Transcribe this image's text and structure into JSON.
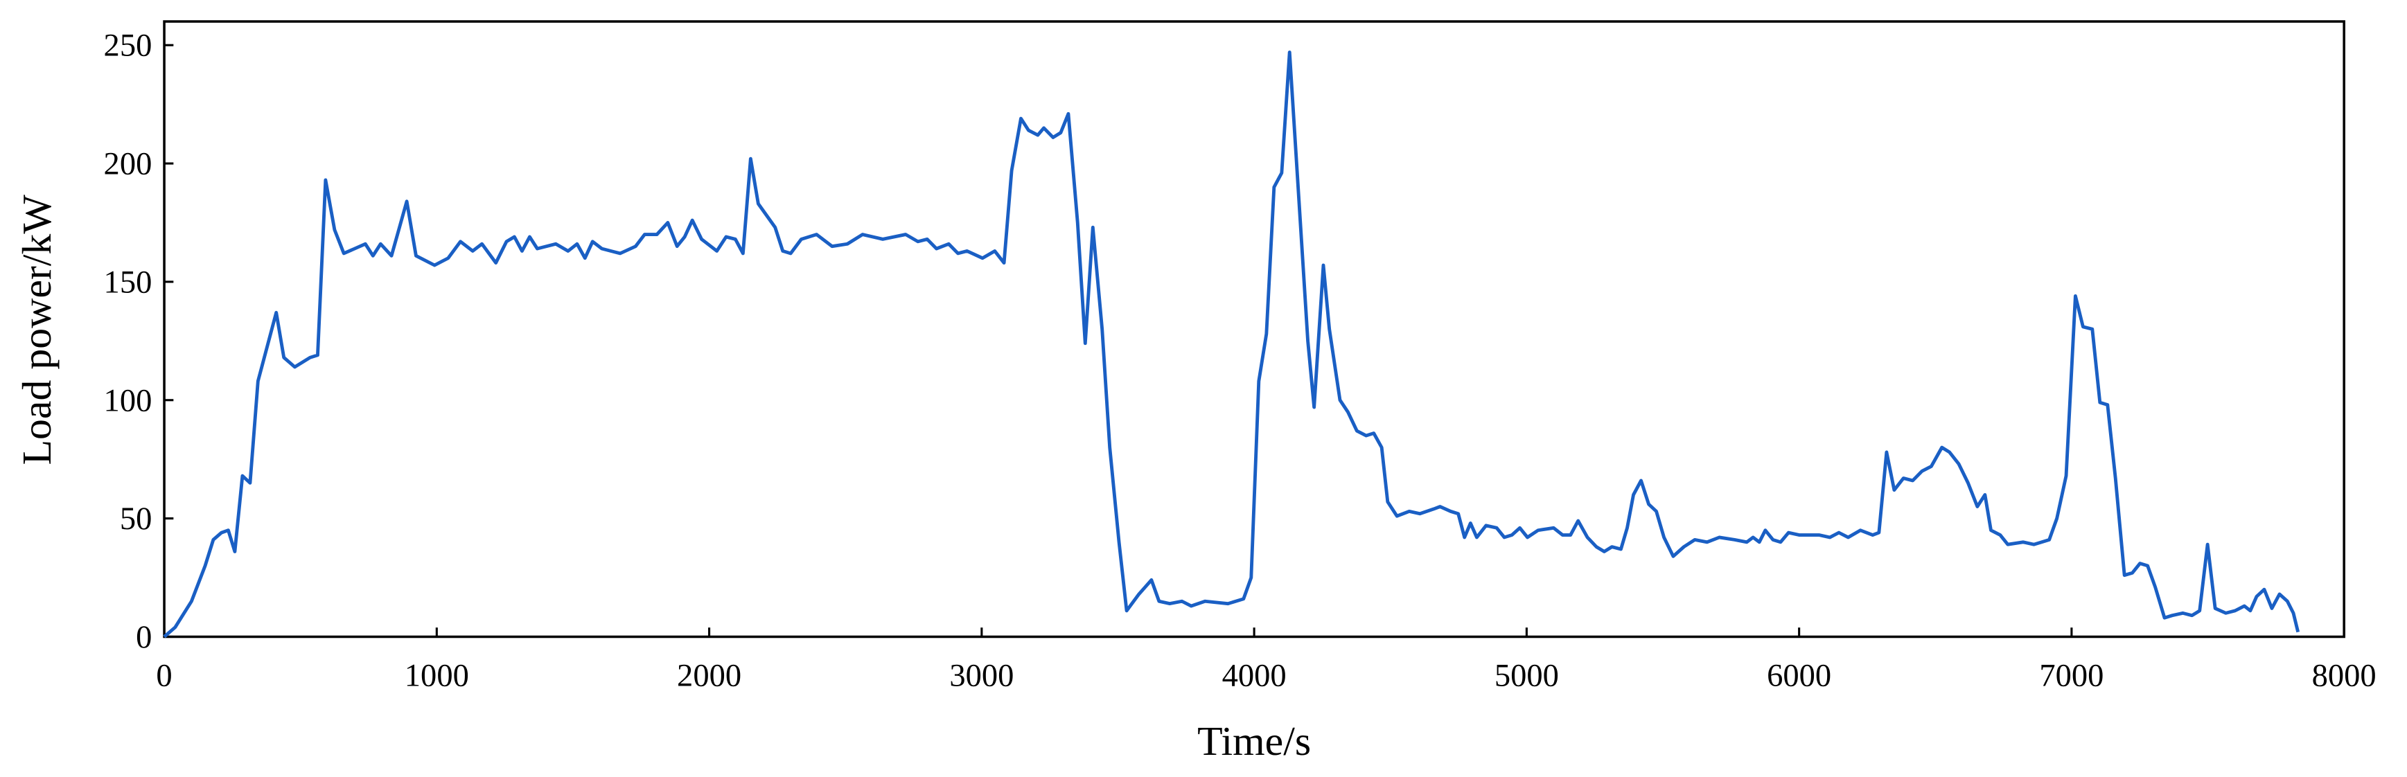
{
  "chart_data": {
    "type": "line",
    "x_label": "Time/s",
    "y_label": "Load power/kW",
    "color": "#1a5fc4",
    "xlim": [
      0,
      8000
    ],
    "ylim": [
      0,
      260
    ],
    "xticks": [
      0,
      1000,
      2000,
      3000,
      4000,
      5000,
      6000,
      7000,
      8000
    ],
    "yticks": [
      0,
      50,
      100,
      150,
      200,
      250
    ],
    "x": [
      0,
      40,
      100,
      150,
      180,
      210,
      235,
      259,
      287,
      315,
      344,
      411,
      439,
      479,
      535,
      563,
      592,
      625,
      659,
      738,
      766,
      794,
      834,
      890,
      924,
      992,
      1042,
      1087,
      1132,
      1166,
      1217,
      1256,
      1285,
      1313,
      1341,
      1369,
      1437,
      1482,
      1515,
      1544,
      1572,
      1606,
      1673,
      1730,
      1763,
      1808,
      1848,
      1882,
      1910,
      1938,
      1972,
      2028,
      2062,
      2096,
      2124,
      2152,
      2180,
      2242,
      2270,
      2299,
      2338,
      2394,
      2451,
      2507,
      2563,
      2637,
      2721,
      2766,
      2800,
      2834,
      2879,
      2913,
      2946,
      3003,
      3048,
      3082,
      3110,
      3144,
      3172,
      3206,
      3228,
      3262,
      3290,
      3318,
      3352,
      3380,
      3408,
      3442,
      3470,
      3504,
      3532,
      3577,
      3623,
      3651,
      3690,
      3735,
      3769,
      3820,
      3904,
      3961,
      3989,
      4017,
      4045,
      4073,
      4101,
      4130,
      4163,
      4197,
      4220,
      4254,
      4276,
      4315,
      4344,
      4377,
      4411,
      4439,
      4468,
      4490,
      4524,
      4569,
      4608,
      4659,
      4682,
      4721,
      4749,
      4772,
      4794,
      4817,
      4851,
      4890,
      4918,
      4946,
      4975,
      5003,
      5042,
      5099,
      5132,
      5161,
      5189,
      5223,
      5256,
      5285,
      5313,
      5346,
      5369,
      5392,
      5420,
      5448,
      5476,
      5504,
      5538,
      5577,
      5617,
      5662,
      5707,
      5763,
      5808,
      5831,
      5854,
      5876,
      5904,
      5932,
      5961,
      6000,
      6073,
      6113,
      6146,
      6180,
      6225,
      6270,
      6293,
      6321,
      6349,
      6383,
      6417,
      6451,
      6485,
      6524,
      6552,
      6586,
      6620,
      6654,
      6682,
      6704,
      6738,
      6766,
      6822,
      6862,
      6918,
      6946,
      6980,
      7014,
      7042,
      7076,
      7104,
      7132,
      7161,
      7194,
      7223,
      7251,
      7279,
      7307,
      7341,
      7369,
      7408,
      7442,
      7470,
      7499,
      7527,
      7566,
      7600,
      7634,
      7656,
      7679,
      7707,
      7735,
      7763,
      7792,
      7814,
      7831
    ],
    "values": [
      0,
      4,
      15,
      30,
      41,
      44,
      45,
      36,
      68,
      65,
      108,
      137,
      118,
      114,
      118,
      119,
      193,
      172,
      162,
      166,
      161,
      166,
      161,
      184,
      161,
      157,
      160,
      167,
      163,
      166,
      158,
      167,
      169,
      163,
      169,
      164,
      166,
      163,
      166,
      160,
      167,
      164,
      162,
      165,
      170,
      170,
      175,
      165,
      169,
      176,
      168,
      163,
      169,
      168,
      162,
      202,
      183,
      173,
      163,
      162,
      168,
      170,
      165,
      166,
      170,
      168,
      170,
      167,
      168,
      164,
      166,
      162,
      163,
      160,
      163,
      158,
      197,
      219,
      214,
      212,
      215,
      211,
      213,
      221,
      175,
      124,
      173,
      130,
      80,
      40,
      11,
      18,
      24,
      15,
      14,
      15,
      13,
      15,
      14,
      16,
      25,
      108,
      128,
      190,
      196,
      247,
      187,
      125,
      97,
      157,
      130,
      100,
      95,
      87,
      85,
      86,
      80,
      57,
      51,
      53,
      52,
      54,
      55,
      53,
      52,
      42,
      48,
      42,
      47,
      46,
      42,
      43,
      46,
      42,
      45,
      46,
      43,
      43,
      49,
      42,
      38,
      36,
      38,
      37,
      46,
      60,
      66,
      56,
      53,
      42,
      34,
      38,
      41,
      40,
      42,
      41,
      40,
      42,
      40,
      45,
      41,
      40,
      44,
      43,
      43,
      42,
      44,
      42,
      45,
      43,
      44,
      78,
      62,
      67,
      66,
      70,
      72,
      80,
      78,
      73,
      65,
      55,
      60,
      45,
      43,
      39,
      40,
      39,
      41,
      50,
      68,
      144,
      131,
      130,
      99,
      98,
      67,
      26,
      27,
      31,
      30,
      21,
      8,
      9,
      10,
      9,
      11,
      39,
      12,
      10,
      11,
      13,
      11,
      17,
      20,
      12,
      18,
      15,
      10,
      2
    ]
  }
}
